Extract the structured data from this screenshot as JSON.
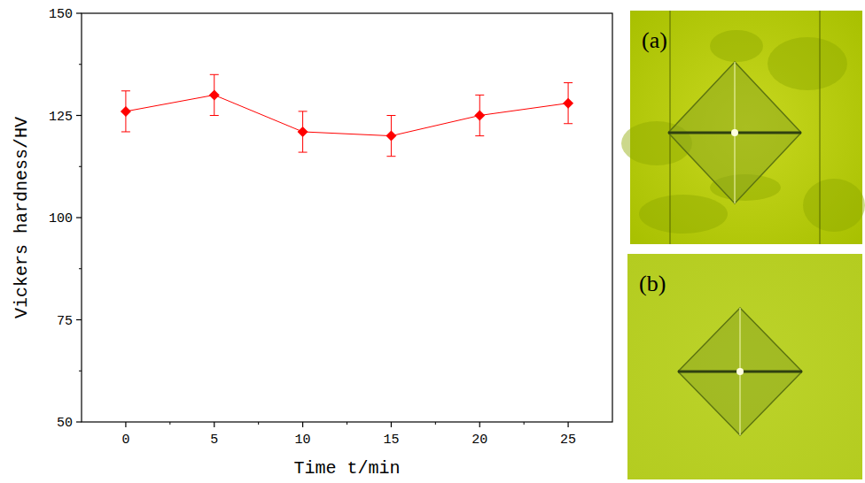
{
  "chart_data": {
    "type": "line",
    "x_label": "Time t/min",
    "y_label": "Vickers hardness/HV",
    "x": [
      0,
      5,
      10,
      15,
      20,
      25
    ],
    "values": [
      126,
      130,
      121,
      120,
      125,
      128
    ],
    "errors": [
      5,
      5,
      5,
      5,
      5,
      5
    ],
    "color": "#ff0000",
    "marker": "diamond",
    "line_style": "solid",
    "xlim": [
      -2.5,
      27.5
    ],
    "xticks": [
      0,
      5,
      10,
      15,
      20,
      25
    ],
    "ylim": [
      50,
      150
    ],
    "yticks": [
      50,
      75,
      100,
      125,
      150
    ],
    "grid": false
  },
  "panels": [
    {
      "label": "(a)"
    },
    {
      "label": "(b)"
    }
  ]
}
